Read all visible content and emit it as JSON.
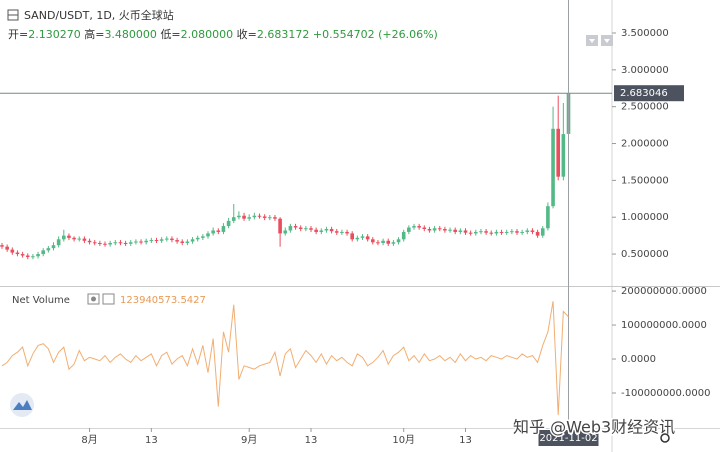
{
  "header": {
    "symbol": "SAND/USDT, 1D, 火币全球站",
    "quote": [
      {
        "label": "开=",
        "value": "2.130270"
      },
      {
        "label": "高=",
        "value": "3.480000"
      },
      {
        "label": "低=",
        "value": "2.080000"
      },
      {
        "label": "收=",
        "value": "2.683172"
      }
    ],
    "change": "+0.554702 (+26.06%)"
  },
  "watermark": "知乎 @Web3财经资讯",
  "chart_data": [
    {
      "type": "candlestick",
      "x": [
        "2021-07-15",
        "2021-07-16",
        "2021-07-17",
        "2021-07-18",
        "2021-07-19",
        "2021-07-20",
        "2021-07-21",
        "2021-07-22",
        "2021-07-23",
        "2021-07-24",
        "2021-07-25",
        "2021-07-26",
        "2021-07-27",
        "2021-07-28",
        "2021-07-29",
        "2021-07-30",
        "2021-07-31",
        "2021-08-01",
        "2021-08-02",
        "2021-08-03",
        "2021-08-04",
        "2021-08-05",
        "2021-08-06",
        "2021-08-07",
        "2021-08-08",
        "2021-08-09",
        "2021-08-10",
        "2021-08-11",
        "2021-08-12",
        "2021-08-13",
        "2021-08-14",
        "2021-08-15",
        "2021-08-16",
        "2021-08-17",
        "2021-08-18",
        "2021-08-19",
        "2021-08-20",
        "2021-08-21",
        "2021-08-22",
        "2021-08-23",
        "2021-08-24",
        "2021-08-25",
        "2021-08-26",
        "2021-08-27",
        "2021-08-28",
        "2021-08-29",
        "2021-08-30",
        "2021-08-31",
        "2021-09-01",
        "2021-09-02",
        "2021-09-03",
        "2021-09-04",
        "2021-09-05",
        "2021-09-06",
        "2021-09-07",
        "2021-09-08",
        "2021-09-09",
        "2021-09-10",
        "2021-09-11",
        "2021-09-12",
        "2021-09-13",
        "2021-09-14",
        "2021-09-15",
        "2021-09-16",
        "2021-09-17",
        "2021-09-18",
        "2021-09-19",
        "2021-09-20",
        "2021-09-21",
        "2021-09-22",
        "2021-09-23",
        "2021-09-24",
        "2021-09-25",
        "2021-09-26",
        "2021-09-27",
        "2021-09-28",
        "2021-09-29",
        "2021-09-30",
        "2021-10-01",
        "2021-10-02",
        "2021-10-03",
        "2021-10-04",
        "2021-10-05",
        "2021-10-06",
        "2021-10-07",
        "2021-10-08",
        "2021-10-09",
        "2021-10-10",
        "2021-10-11",
        "2021-10-12",
        "2021-10-13",
        "2021-10-14",
        "2021-10-15",
        "2021-10-16",
        "2021-10-17",
        "2021-10-18",
        "2021-10-19",
        "2021-10-20",
        "2021-10-21",
        "2021-10-22",
        "2021-10-23",
        "2021-10-24",
        "2021-10-25",
        "2021-10-26",
        "2021-10-27",
        "2021-10-28",
        "2021-10-29",
        "2021-10-30",
        "2021-10-31",
        "2021-11-01",
        "2021-11-02"
      ],
      "open": [
        0.62,
        0.6,
        0.56,
        0.52,
        0.5,
        0.48,
        0.46,
        0.47,
        0.5,
        0.55,
        0.58,
        0.62,
        0.7,
        0.75,
        0.72,
        0.7,
        0.71,
        0.68,
        0.66,
        0.65,
        0.64,
        0.63,
        0.65,
        0.66,
        0.65,
        0.64,
        0.66,
        0.67,
        0.66,
        0.68,
        0.69,
        0.68,
        0.7,
        0.71,
        0.69,
        0.67,
        0.65,
        0.67,
        0.7,
        0.72,
        0.74,
        0.78,
        0.82,
        0.8,
        0.88,
        0.95,
        1.0,
        1.02,
        0.98,
        1.0,
        1.02,
        1.01,
        0.99,
        1.0,
        0.98,
        0.78,
        0.82,
        0.88,
        0.86,
        0.84,
        0.85,
        0.83,
        0.8,
        0.82,
        0.84,
        0.81,
        0.79,
        0.8,
        0.78,
        0.7,
        0.72,
        0.74,
        0.7,
        0.66,
        0.65,
        0.68,
        0.64,
        0.66,
        0.7,
        0.8,
        0.86,
        0.88,
        0.86,
        0.84,
        0.82,
        0.85,
        0.84,
        0.82,
        0.83,
        0.8,
        0.82,
        0.79,
        0.78,
        0.8,
        0.81,
        0.79,
        0.78,
        0.8,
        0.79,
        0.8,
        0.81,
        0.79,
        0.8,
        0.82,
        0.8,
        0.75,
        0.85,
        1.15,
        2.2,
        1.55,
        2.13027
      ],
      "high": [
        0.65,
        0.63,
        0.59,
        0.55,
        0.53,
        0.51,
        0.5,
        0.53,
        0.58,
        0.61,
        0.66,
        0.74,
        0.83,
        0.78,
        0.74,
        0.74,
        0.74,
        0.71,
        0.69,
        0.68,
        0.67,
        0.68,
        0.69,
        0.69,
        0.68,
        0.69,
        0.7,
        0.7,
        0.71,
        0.72,
        0.72,
        0.73,
        0.74,
        0.74,
        0.72,
        0.7,
        0.7,
        0.73,
        0.75,
        0.77,
        0.81,
        0.86,
        0.85,
        0.92,
        0.99,
        1.18,
        1.08,
        1.06,
        1.04,
        1.06,
        1.05,
        1.04,
        1.03,
        1.03,
        1.0,
        0.86,
        0.91,
        0.91,
        0.89,
        0.88,
        0.88,
        0.86,
        0.85,
        0.87,
        0.87,
        0.84,
        0.83,
        0.83,
        0.81,
        0.75,
        0.77,
        0.77,
        0.73,
        0.69,
        0.71,
        0.71,
        0.69,
        0.73,
        0.83,
        0.89,
        0.91,
        0.91,
        0.89,
        0.87,
        0.88,
        0.88,
        0.87,
        0.86,
        0.86,
        0.85,
        0.85,
        0.82,
        0.83,
        0.84,
        0.84,
        0.82,
        0.83,
        0.83,
        0.83,
        0.84,
        0.84,
        0.83,
        0.85,
        0.85,
        0.83,
        0.88,
        1.2,
        2.5,
        2.65,
        2.55,
        3.48
      ],
      "low": [
        0.57,
        0.53,
        0.49,
        0.47,
        0.45,
        0.43,
        0.43,
        0.44,
        0.47,
        0.52,
        0.55,
        0.59,
        0.67,
        0.69,
        0.67,
        0.67,
        0.65,
        0.63,
        0.62,
        0.61,
        0.6,
        0.6,
        0.62,
        0.62,
        0.61,
        0.61,
        0.63,
        0.63,
        0.63,
        0.65,
        0.65,
        0.65,
        0.67,
        0.66,
        0.64,
        0.62,
        0.62,
        0.64,
        0.67,
        0.69,
        0.71,
        0.75,
        0.77,
        0.77,
        0.85,
        0.92,
        0.97,
        0.95,
        0.95,
        0.97,
        0.98,
        0.96,
        0.96,
        0.95,
        0.6,
        0.75,
        0.79,
        0.83,
        0.81,
        0.81,
        0.8,
        0.77,
        0.77,
        0.79,
        0.78,
        0.76,
        0.76,
        0.75,
        0.67,
        0.67,
        0.69,
        0.67,
        0.63,
        0.62,
        0.62,
        0.61,
        0.61,
        0.63,
        0.67,
        0.77,
        0.83,
        0.83,
        0.81,
        0.79,
        0.79,
        0.81,
        0.79,
        0.79,
        0.77,
        0.77,
        0.76,
        0.75,
        0.75,
        0.77,
        0.76,
        0.75,
        0.75,
        0.76,
        0.76,
        0.77,
        0.76,
        0.76,
        0.77,
        0.77,
        0.72,
        0.72,
        0.82,
        1.12,
        1.5,
        1.5,
        2.08
      ],
      "close": [
        0.6,
        0.56,
        0.52,
        0.5,
        0.48,
        0.46,
        0.47,
        0.5,
        0.55,
        0.58,
        0.62,
        0.7,
        0.75,
        0.72,
        0.7,
        0.71,
        0.68,
        0.66,
        0.65,
        0.64,
        0.63,
        0.65,
        0.66,
        0.65,
        0.64,
        0.66,
        0.67,
        0.66,
        0.68,
        0.69,
        0.68,
        0.7,
        0.71,
        0.69,
        0.67,
        0.65,
        0.67,
        0.7,
        0.72,
        0.74,
        0.78,
        0.82,
        0.8,
        0.88,
        0.95,
        1.0,
        1.02,
        0.98,
        1.0,
        1.02,
        1.01,
        0.99,
        1.0,
        0.98,
        0.78,
        0.82,
        0.88,
        0.86,
        0.84,
        0.85,
        0.83,
        0.8,
        0.82,
        0.84,
        0.81,
        0.79,
        0.8,
        0.78,
        0.7,
        0.72,
        0.74,
        0.7,
        0.66,
        0.65,
        0.68,
        0.64,
        0.66,
        0.7,
        0.8,
        0.86,
        0.88,
        0.86,
        0.84,
        0.82,
        0.85,
        0.84,
        0.82,
        0.83,
        0.8,
        0.82,
        0.79,
        0.78,
        0.8,
        0.81,
        0.79,
        0.78,
        0.8,
        0.79,
        0.8,
        0.81,
        0.79,
        0.8,
        0.82,
        0.8,
        0.75,
        0.85,
        1.15,
        2.2,
        1.55,
        2.128,
        2.683172
      ],
      "up_color": "#53b987",
      "down_color": "#eb4d5c",
      "ylim": [
        0.08,
        3.88
      ],
      "yticks": [
        {
          "value": 3.5,
          "label": "3.500000"
        },
        {
          "value": 3.0,
          "label": "3.000000"
        },
        {
          "value": 2.5,
          "label": "2.500000"
        },
        {
          "value": 2.0,
          "label": "2.000000"
        },
        {
          "value": 1.5,
          "label": "1.500000"
        },
        {
          "value": 1.0,
          "label": "1.000000"
        },
        {
          "value": 0.5,
          "label": "0.500000"
        }
      ],
      "xticks": [
        {
          "value": "2021-08-01",
          "label": "8月"
        },
        {
          "value": "2021-08-13",
          "label": "13"
        },
        {
          "value": "2021-09-01",
          "label": "9月"
        },
        {
          "value": "2021-09-13",
          "label": "13"
        },
        {
          "value": "2021-10-01",
          "label": "10月"
        },
        {
          "value": "2021-10-13",
          "label": "13"
        }
      ],
      "crosshair": {
        "price": 2.683046,
        "price_label": "2.683046",
        "date": "2021-11-02"
      }
    },
    {
      "type": "line",
      "title": "Net Volume",
      "color": "#f2ae72",
      "values": [
        -20000000.0,
        -10000000.0,
        10000000.0,
        20000000.0,
        35000000.0,
        -20000000.0,
        15000000.0,
        40000000.0,
        45000000.0,
        30000000.0,
        -10000000.0,
        20000000.0,
        35000000.0,
        -30000000.0,
        -15000000.0,
        25000000.0,
        -5000000.0,
        5000000.0,
        0,
        -5000000.0,
        10000000.0,
        -10000000.0,
        5000000.0,
        15000000.0,
        0,
        -10000000.0,
        10000000.0,
        -5000000.0,
        5000000.0,
        15000000.0,
        -20000000.0,
        10000000.0,
        20000000.0,
        -15000000.0,
        0,
        10000000.0,
        -20000000.0,
        30000000.0,
        -15000000.0,
        40000000.0,
        -40000000.0,
        60000000.0,
        -140000000.0,
        80000000.0,
        20000000.0,
        160000000.0,
        -60000000.0,
        -20000000.0,
        -25000000.0,
        -30000000.0,
        -20000000.0,
        -15000000.0,
        -10000000.0,
        20000000.0,
        -50000000.0,
        15000000.0,
        30000000.0,
        -25000000.0,
        0,
        25000000.0,
        10000000.0,
        -10000000.0,
        15000000.0,
        -15000000.0,
        10000000.0,
        -5000000.0,
        5000000.0,
        -10000000.0,
        -20000000.0,
        15000000.0,
        5000000.0,
        -20000000.0,
        -10000000.0,
        5000000.0,
        25000000.0,
        -15000000.0,
        10000000.0,
        20000000.0,
        35000000.0,
        -5000000.0,
        10000000.0,
        -10000000.0,
        15000000.0,
        -5000000.0,
        0,
        10000000.0,
        -5000000.0,
        5000000.0,
        -10000000.0,
        15000000.0,
        -5000000.0,
        10000000.0,
        0,
        5000000.0,
        -5000000.0,
        10000000.0,
        5000000.0,
        0,
        10000000.0,
        5000000.0,
        0,
        15000000.0,
        5000000.0,
        10000000.0,
        -10000000.0,
        40000000.0,
        80000000.0,
        170000000.0,
        -165000000.0,
        140000000.0,
        123940573.5427
      ],
      "ylim": [
        -203000000,
        209000000
      ],
      "yticks": [
        {
          "value": 200000000,
          "label": "200000000.0000"
        },
        {
          "value": 100000000,
          "label": "100000000.0000"
        },
        {
          "value": 0,
          "label": "0.0000"
        },
        {
          "value": -100000000,
          "label": "-100000000.0000"
        }
      ]
    }
  ]
}
